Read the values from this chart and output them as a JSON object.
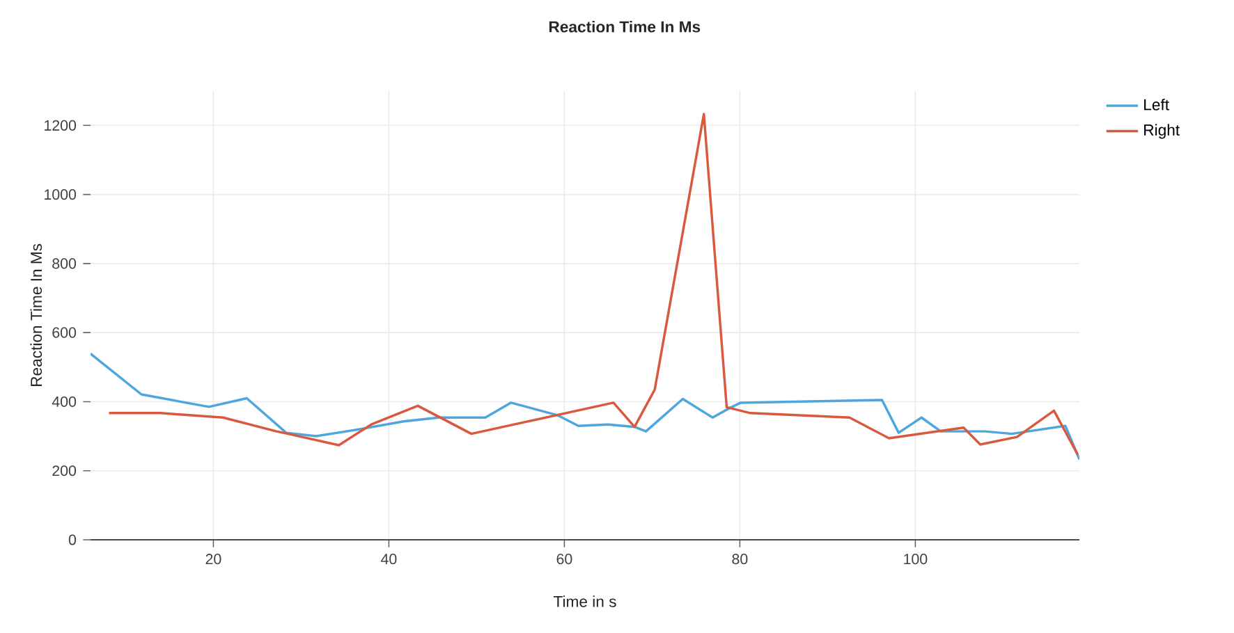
{
  "chart_data": {
    "type": "line",
    "title": "Reaction Time In Ms",
    "xlabel": "Time in s",
    "ylabel": "Reaction Time In Ms",
    "xlim": [
      6,
      118.7
    ],
    "ylim": [
      0,
      1300
    ],
    "xticks": [
      20,
      40,
      60,
      80,
      100
    ],
    "yticks": [
      0,
      200,
      400,
      600,
      800,
      1000,
      1200
    ],
    "grid": true,
    "legend": "top right",
    "series": [
      {
        "name": "Left",
        "color": "#4da7de",
        "x": [
          6,
          11.8,
          19.5,
          23.8,
          28.3,
          31.7,
          35.9,
          41.7,
          45.7,
          51,
          53.9,
          59.2,
          61.6,
          65,
          68,
          69.3,
          73.5,
          76.9,
          78.8,
          80.1,
          96.2,
          98.1,
          100.7,
          102.9,
          107.9,
          111,
          117.1,
          118.7
        ],
        "values": [
          539,
          421,
          385,
          410,
          310,
          300,
          317,
          343,
          354,
          354,
          397,
          361,
          330,
          334,
          327,
          314,
          408,
          354,
          381,
          397,
          405,
          310,
          354,
          314,
          314,
          307,
          330,
          233
        ]
      },
      {
        "name": "Right",
        "color": "#d9593f",
        "x": [
          8.1,
          14,
          21.1,
          27.2,
          28.5,
          34.3,
          38,
          43.3,
          49.4,
          65.6,
          68,
          70.3,
          75.9,
          78.5,
          81.2,
          92.5,
          97,
          105.5,
          107.4,
          111.6,
          115.8,
          118.5
        ],
        "values": [
          367,
          367,
          354,
          314,
          307,
          274,
          334,
          388,
          307,
          397,
          327,
          435,
          1233,
          384,
          367,
          354,
          294,
          325,
          276,
          298,
          374,
          247
        ]
      }
    ]
  }
}
